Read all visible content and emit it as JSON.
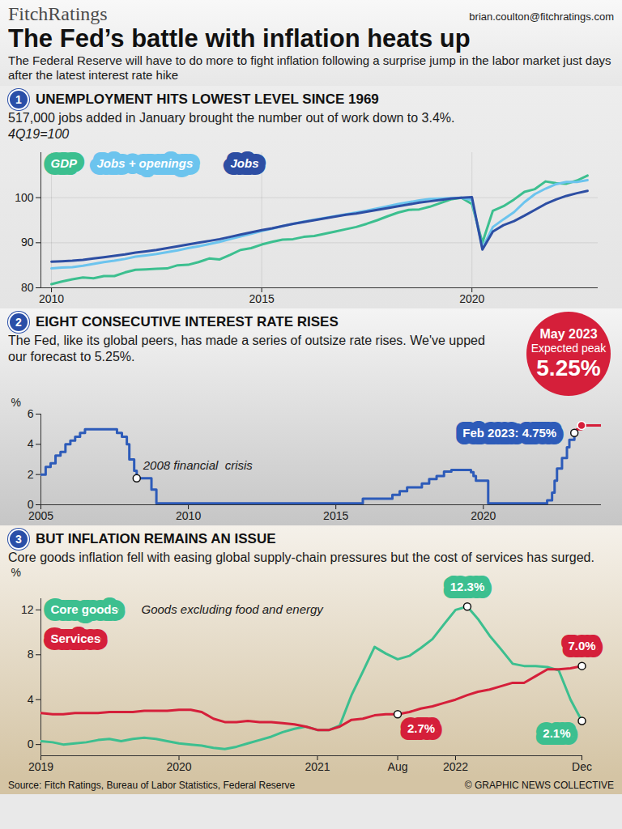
{
  "header": {
    "logo": "FitchRatings",
    "email": "brian.coulton@fitchratings.com",
    "title": "The Fed’s battle with inflation heats up",
    "subtitle": "The Federal Reserve will have to do more to fight inflation following a surprise jump in the labor market just days after the latest interest rate hike"
  },
  "chart_data": [
    {
      "number": "1",
      "heading": "UNEMPLOYMENT HITS LOWEST LEVEL SINCE 1969",
      "description": "517,000 jobs added in January brought the number out of work down to 3.4%.",
      "note": "4Q19=100",
      "type": "line",
      "x": [
        "2010-01",
        "2010-04",
        "2010-07",
        "2010-10",
        "2011-01",
        "2011-04",
        "2011-07",
        "2011-10",
        "2012-01",
        "2012-04",
        "2012-07",
        "2012-10",
        "2013-01",
        "2013-04",
        "2013-07",
        "2013-10",
        "2014-01",
        "2014-04",
        "2014-07",
        "2014-10",
        "2015-01",
        "2015-04",
        "2015-07",
        "2015-10",
        "2016-01",
        "2016-04",
        "2016-07",
        "2016-10",
        "2017-01",
        "2017-04",
        "2017-07",
        "2017-10",
        "2018-01",
        "2018-04",
        "2018-07",
        "2018-10",
        "2019-01",
        "2019-04",
        "2019-07",
        "2019-10",
        "2020-01",
        "2020-04",
        "2020-07",
        "2020-10",
        "2021-01",
        "2021-04",
        "2021-07",
        "2021-10",
        "2022-01",
        "2022-04",
        "2022-07",
        "2022-10"
      ],
      "series": [
        {
          "name": "GDP",
          "color": "#3cbf8f",
          "values": [
            80.8,
            81.4,
            81.9,
            82.3,
            82.1,
            82.6,
            82.6,
            83.4,
            84.0,
            84.1,
            84.2,
            84.3,
            85.0,
            85.1,
            85.7,
            86.5,
            86.3,
            87.3,
            88.4,
            88.8,
            89.6,
            90.2,
            90.7,
            90.8,
            91.3,
            91.5,
            92.0,
            92.5,
            93.0,
            93.5,
            94.2,
            95.0,
            95.9,
            96.7,
            97.3,
            97.4,
            98.0,
            98.8,
            99.6,
            100.0,
            98.6,
            90.0,
            97.1,
            98.1,
            99.6,
            101.3,
            101.9,
            103.6,
            103.2,
            103.1,
            103.8,
            104.9
          ]
        },
        {
          "name": "Jobs + openings",
          "color": "#6cc4ee",
          "values": [
            84.3,
            84.5,
            84.6,
            84.9,
            85.3,
            85.7,
            86.0,
            86.4,
            86.9,
            87.2,
            87.5,
            87.9,
            88.3,
            88.8,
            89.2,
            89.7,
            90.2,
            90.8,
            91.4,
            92.0,
            92.6,
            93.1,
            93.7,
            94.2,
            94.7,
            95.1,
            95.5,
            95.9,
            96.3,
            96.7,
            97.1,
            97.6,
            98.1,
            98.6,
            99.0,
            99.4,
            99.7,
            99.8,
            99.9,
            100.0,
            99.5,
            88.8,
            93.5,
            95.2,
            96.8,
            99.0,
            100.8,
            102.0,
            103.0,
            103.5,
            103.5,
            103.9
          ]
        },
        {
          "name": "Jobs",
          "color": "#2d4ea3",
          "values": [
            85.8,
            85.9,
            86.0,
            86.2,
            86.5,
            86.8,
            87.1,
            87.4,
            87.8,
            88.1,
            88.4,
            88.8,
            89.2,
            89.6,
            90.0,
            90.4,
            90.8,
            91.3,
            91.8,
            92.3,
            92.8,
            93.2,
            93.7,
            94.2,
            94.6,
            95.0,
            95.4,
            95.8,
            96.2,
            96.5,
            96.9,
            97.3,
            97.7,
            98.1,
            98.5,
            98.9,
            99.2,
            99.5,
            99.8,
            100.0,
            100.1,
            88.5,
            92.5,
            93.9,
            94.8,
            96.0,
            97.3,
            98.6,
            99.6,
            100.4,
            101.0,
            101.5
          ]
        }
      ],
      "xlim": [
        "2009-10",
        "2023-01"
      ],
      "xticks": [
        {
          "value": "2010-01",
          "label": "2010"
        },
        {
          "value": "2015-01",
          "label": "2015"
        },
        {
          "value": "2020-01",
          "label": "2020"
        }
      ],
      "ylim": [
        80,
        110
      ],
      "yticks": [
        80,
        90,
        100
      ],
      "grid": true,
      "legend": "top-left"
    },
    {
      "number": "2",
      "heading": "EIGHT CONSECUTIVE INTEREST RATE RISES",
      "description": "The Fed, like its global peers, has made a series of outsize rate rises. We've upped our forecast to 5.25%.",
      "type": "line",
      "ylabel": "%",
      "series": [
        {
          "color": "#2d5bb9",
          "line_style": "step",
          "x": [
            "2005-01",
            "2005-03",
            "2005-05",
            "2005-07",
            "2005-09",
            "2005-11",
            "2006-01",
            "2006-03",
            "2006-05",
            "2006-07",
            "2007-08",
            "2007-10",
            "2007-12",
            "2008-01",
            "2008-03",
            "2008-04",
            "2008-10",
            "2008-12",
            "2015-12",
            "2016-12",
            "2017-03",
            "2017-06",
            "2017-12",
            "2018-03",
            "2018-06",
            "2018-09",
            "2018-12",
            "2019-08",
            "2019-09",
            "2019-10",
            "2020-03",
            "2022-03",
            "2022-05",
            "2022-06",
            "2022-07",
            "2022-09",
            "2022-11",
            "2022-12",
            "2023-02"
          ],
          "values": [
            2.0,
            2.5,
            2.75,
            3.25,
            3.5,
            4.0,
            4.25,
            4.5,
            4.75,
            5.0,
            4.75,
            4.5,
            4.0,
            3.0,
            2.25,
            1.75,
            1.0,
            0.1,
            0.4,
            0.65,
            0.9,
            1.15,
            1.4,
            1.7,
            1.9,
            2.2,
            2.3,
            2.15,
            1.9,
            1.6,
            0.1,
            0.3,
            0.8,
            1.6,
            2.4,
            3.1,
            3.8,
            4.3,
            4.75
          ]
        },
        {
          "color": "#d51f3a",
          "line_style": "step",
          "x": [
            "2023-02",
            "2023-03",
            "2023-05",
            "2024-01"
          ],
          "values": [
            4.75,
            5.0,
            5.25,
            5.25
          ]
        }
      ],
      "xlim": [
        "2005-01",
        "2024-01"
      ],
      "xticks": [
        {
          "value": "2005-01",
          "label": "2005"
        },
        {
          "value": "2010-01",
          "label": "2010"
        },
        {
          "value": "2015-01",
          "label": "2015"
        },
        {
          "value": "2020-01",
          "label": "2020"
        }
      ],
      "ylim": [
        0,
        6
      ],
      "yticks": [
        0,
        2,
        4,
        6
      ],
      "grid": false,
      "annotations": [
        {
          "text": "2008 financial  crisis",
          "x": "2008-04"
        },
        {
          "text": "Feb 2023: 4.75%",
          "x": "2023-02"
        }
      ],
      "callout": {
        "title": "May 2023",
        "text": "Expected peak",
        "value_label": "5.25%",
        "x": "2023-05"
      }
    },
    {
      "number": "3",
      "heading": "BUT INFLATION REMAINS AN ISSUE",
      "description": "Core goods inflation fell with easing global supply-chain pressures but the cost of services has surged.",
      "note": "Goods excluding food and energy",
      "type": "line",
      "ylabel": "%",
      "x": [
        "2019-01",
        "2019-02",
        "2019-03",
        "2019-04",
        "2019-05",
        "2019-06",
        "2019-07",
        "2019-08",
        "2019-09",
        "2019-10",
        "2019-11",
        "2019-12",
        "2020-01",
        "2020-02",
        "2020-03",
        "2020-04",
        "2020-05",
        "2020-06",
        "2020-07",
        "2020-08",
        "2020-09",
        "2020-10",
        "2020-11",
        "2020-12",
        "2021-01",
        "2021-02",
        "2021-03",
        "2021-04",
        "2021-05",
        "2021-06",
        "2021-07",
        "2021-08",
        "2021-09",
        "2021-10",
        "2021-11",
        "2021-12",
        "2022-01",
        "2022-02",
        "2022-03",
        "2022-04",
        "2022-05",
        "2022-06",
        "2022-07",
        "2022-08",
        "2022-09",
        "2022-10",
        "2022-11",
        "2022-12"
      ],
      "series": [
        {
          "name": "Core goods",
          "color": "#3cbf8f",
          "values": [
            0.3,
            0.2,
            0.0,
            0.1,
            0.2,
            0.4,
            0.5,
            0.3,
            0.5,
            0.6,
            0.5,
            0.3,
            0.1,
            0.0,
            -0.1,
            -0.3,
            -0.4,
            -0.2,
            0.1,
            0.4,
            0.7,
            1.1,
            1.4,
            1.6,
            1.3,
            1.3,
            1.7,
            4.4,
            6.5,
            8.7,
            8.1,
            7.6,
            7.9,
            8.6,
            9.4,
            10.7,
            12.0,
            12.3,
            11.2,
            9.7,
            8.5,
            7.2,
            7.0,
            7.0,
            6.9,
            6.6,
            4.0,
            2.1
          ]
        },
        {
          "name": "Services",
          "color": "#d51f3a",
          "values": [
            2.8,
            2.7,
            2.7,
            2.8,
            2.8,
            2.8,
            2.9,
            2.9,
            2.9,
            3.0,
            3.0,
            3.0,
            3.1,
            3.1,
            2.9,
            2.3,
            2.0,
            2.0,
            2.1,
            2.0,
            2.0,
            1.9,
            1.8,
            1.6,
            1.3,
            1.3,
            1.6,
            2.2,
            2.3,
            2.6,
            2.7,
            2.7,
            2.9,
            3.2,
            3.4,
            3.7,
            4.0,
            4.4,
            4.7,
            4.9,
            5.2,
            5.5,
            5.5,
            6.1,
            6.7,
            6.7,
            6.8,
            7.0
          ]
        }
      ],
      "xlim": [
        "2019-01",
        "2022-12"
      ],
      "xticks": [
        {
          "value": "2019-01",
          "label": "2019"
        },
        {
          "value": "2020-01",
          "label": "2020"
        },
        {
          "value": "2021-01",
          "label": "2021"
        },
        {
          "value": "2021-08",
          "label": "Aug"
        },
        {
          "value": "2022-01",
          "label": "2022"
        },
        {
          "value": "2022-12",
          "label": "Dec"
        }
      ],
      "ylim": [
        -1,
        13
      ],
      "yticks": [
        0,
        4,
        8,
        12
      ],
      "grid": false,
      "legend": "top-left",
      "annotations": [
        {
          "text": "12.3%",
          "series": "Core goods",
          "x": "2022-02"
        },
        {
          "text": "2.1%",
          "series": "Core goods",
          "x": "2022-12"
        },
        {
          "text": "2.7%",
          "series": "Services",
          "x": "2021-08"
        },
        {
          "text": "7.0%",
          "series": "Services",
          "x": "2022-12"
        }
      ]
    }
  ],
  "footer": {
    "source": "Source: Fitch Ratings, Bureau of Labor Statistics, Federal Reserve",
    "credit": "© GRAPHIC NEWS COLLECTIVE"
  }
}
